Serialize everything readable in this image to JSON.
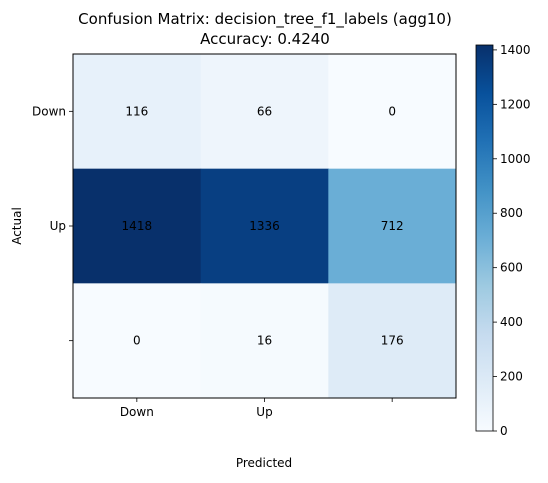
{
  "chart_data": {
    "type": "heatmap",
    "title": "Confusion Matrix: decision_tree_f1_labels (agg10)",
    "subtitle": "Accuracy: 0.4240",
    "xlabel": "Predicted",
    "ylabel": "Actual",
    "x_tick_labels": [
      "Down",
      "Up",
      ""
    ],
    "y_tick_labels": [
      "Down",
      "Up",
      ""
    ],
    "matrix": [
      [
        116,
        66,
        0
      ],
      [
        1418,
        1336,
        712
      ],
      [
        0,
        16,
        176
      ]
    ],
    "colormap": "Blues",
    "colorbar": {
      "min": 0,
      "max": 1418,
      "ticks": [
        0,
        200,
        400,
        600,
        800,
        1000,
        1200,
        1400
      ]
    }
  }
}
